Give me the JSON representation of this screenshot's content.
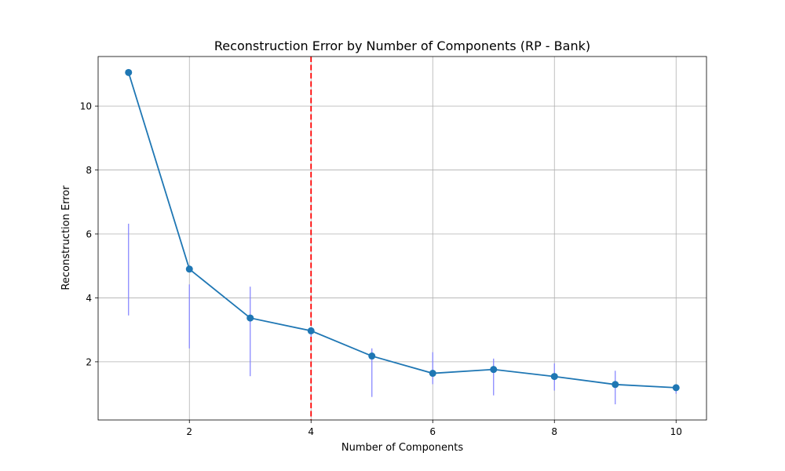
{
  "chart_data": {
    "type": "line",
    "title": "Reconstruction Error by Number of Components (RP - Bank)",
    "xlabel": "Number of Components",
    "ylabel": "Reconstruction Error",
    "xlim": [
      0.5,
      10.5
    ],
    "ylim": [
      0.18,
      11.55
    ],
    "xticks": [
      2,
      4,
      6,
      8,
      10
    ],
    "yticks": [
      2,
      4,
      6,
      8,
      10
    ],
    "grid": true,
    "series": [
      {
        "x": [
          1,
          2,
          3,
          4,
          5,
          6,
          7,
          8,
          9,
          10
        ],
        "values": [
          11.05,
          4.9,
          3.37,
          2.97,
          2.18,
          1.64,
          1.76,
          1.54,
          1.29,
          1.19
        ],
        "color": "#1f77b4",
        "marker": "circle"
      }
    ],
    "error_bars": {
      "color": "#8080ff",
      "ranges": [
        [
          3.45,
          6.32
        ],
        [
          2.42,
          4.42
        ],
        [
          1.55,
          4.35
        ],
        [
          2.75,
          3.05
        ],
        [
          0.9,
          2.42
        ],
        [
          1.3,
          2.3
        ],
        [
          0.95,
          2.1
        ],
        [
          1.1,
          1.95
        ],
        [
          0.67,
          1.72
        ],
        [
          1.0,
          1.25
        ]
      ]
    },
    "reference_line": {
      "x": 4,
      "color": "#ff0000",
      "style": "dashed"
    }
  }
}
